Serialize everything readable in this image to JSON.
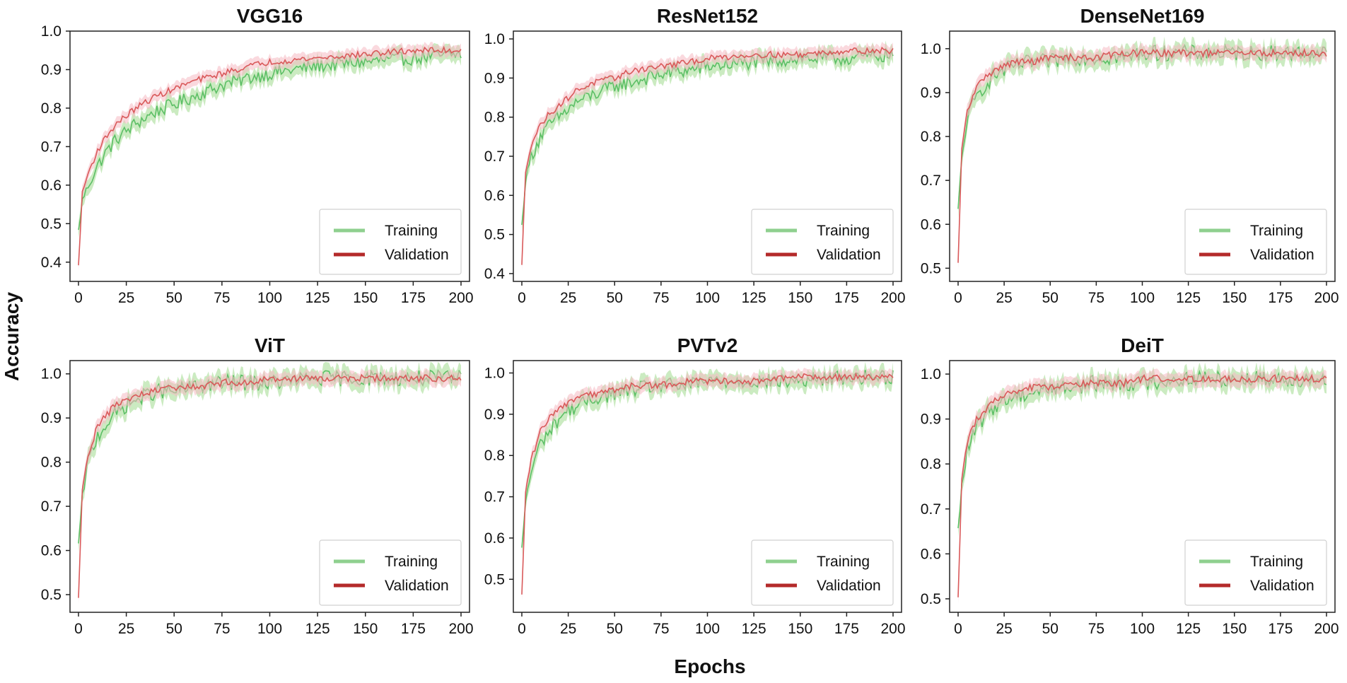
{
  "figure": {
    "ylabel": "Accuracy",
    "xlabel": "Epochs"
  },
  "colors": {
    "training_line": "#5cbf65",
    "training_band": "#a9dd98",
    "validation_line": "#d9595a",
    "validation_band": "#f6b9c2",
    "legend_training": "#8fd08f",
    "legend_validation": "#b42a2a",
    "axis": "#222222"
  },
  "legend": {
    "training_label": "Training",
    "validation_label": "Validation",
    "placement": "lower-right"
  },
  "chart_data": [
    {
      "type": "line",
      "title": "VGG16",
      "x_range": [
        0,
        200
      ],
      "x_ticks": [
        0,
        25,
        50,
        75,
        100,
        125,
        150,
        175,
        200
      ],
      "ylim": [
        0.35,
        1.0
      ],
      "y_ticks": [
        0.4,
        0.5,
        0.6,
        0.7,
        0.8,
        0.9,
        1.0
      ],
      "y_tick_labels": [
        "0.4",
        "0.5",
        "0.6",
        "0.7",
        "0.8",
        "0.9",
        "1.0"
      ],
      "series": [
        {
          "name": "Training",
          "x": [
            0,
            2,
            5,
            10,
            15,
            20,
            25,
            30,
            40,
            50,
            60,
            75,
            90,
            100,
            125,
            150,
            175,
            200
          ],
          "values": [
            0.48,
            0.56,
            0.6,
            0.65,
            0.69,
            0.72,
            0.74,
            0.76,
            0.79,
            0.81,
            0.83,
            0.86,
            0.88,
            0.89,
            0.91,
            0.92,
            0.93,
            0.94
          ],
          "band": 0.02
        },
        {
          "name": "Validation",
          "x": [
            0,
            2,
            5,
            10,
            15,
            20,
            25,
            30,
            40,
            50,
            60,
            75,
            90,
            100,
            125,
            150,
            175,
            200
          ],
          "values": [
            0.39,
            0.58,
            0.63,
            0.69,
            0.73,
            0.76,
            0.78,
            0.8,
            0.83,
            0.85,
            0.87,
            0.89,
            0.91,
            0.92,
            0.93,
            0.94,
            0.95,
            0.95
          ],
          "band": 0.015
        }
      ]
    },
    {
      "type": "line",
      "title": "ResNet152",
      "x_range": [
        0,
        200
      ],
      "x_ticks": [
        0,
        25,
        50,
        75,
        100,
        125,
        150,
        175,
        200
      ],
      "ylim": [
        0.38,
        1.02
      ],
      "y_ticks": [
        0.4,
        0.5,
        0.6,
        0.7,
        0.8,
        0.9,
        1.0
      ],
      "y_tick_labels": [
        "0.4",
        "0.5",
        "0.6",
        "0.7",
        "0.8",
        "0.9",
        "1.0"
      ],
      "series": [
        {
          "name": "Training",
          "x": [
            0,
            2,
            5,
            10,
            15,
            20,
            25,
            30,
            40,
            50,
            60,
            75,
            90,
            100,
            125,
            150,
            175,
            200
          ],
          "values": [
            0.52,
            0.64,
            0.7,
            0.75,
            0.78,
            0.8,
            0.82,
            0.84,
            0.86,
            0.88,
            0.89,
            0.91,
            0.92,
            0.93,
            0.94,
            0.95,
            0.95,
            0.96
          ],
          "band": 0.02
        },
        {
          "name": "Validation",
          "x": [
            0,
            2,
            5,
            10,
            15,
            20,
            25,
            30,
            40,
            50,
            60,
            75,
            90,
            100,
            125,
            150,
            175,
            200
          ],
          "values": [
            0.42,
            0.66,
            0.73,
            0.78,
            0.81,
            0.83,
            0.85,
            0.87,
            0.89,
            0.9,
            0.92,
            0.93,
            0.94,
            0.95,
            0.96,
            0.96,
            0.97,
            0.97
          ],
          "band": 0.015
        }
      ]
    },
    {
      "type": "line",
      "title": "DenseNet169",
      "x_range": [
        0,
        200
      ],
      "x_ticks": [
        0,
        25,
        50,
        75,
        100,
        125,
        150,
        175,
        200
      ],
      "ylim": [
        0.47,
        1.04
      ],
      "y_ticks": [
        0.5,
        0.6,
        0.7,
        0.8,
        0.9,
        1.0
      ],
      "y_tick_labels": [
        "0.5",
        "0.6",
        "0.7",
        "0.8",
        "0.9",
        "1.0"
      ],
      "series": [
        {
          "name": "Training",
          "x": [
            0,
            2,
            5,
            10,
            15,
            20,
            25,
            30,
            40,
            50,
            60,
            75,
            90,
            100,
            125,
            150,
            175,
            200
          ],
          "values": [
            0.63,
            0.75,
            0.84,
            0.89,
            0.92,
            0.94,
            0.95,
            0.96,
            0.97,
            0.97,
            0.98,
            0.98,
            0.98,
            0.99,
            0.99,
            0.99,
            0.99,
            0.99
          ],
          "band": 0.02
        },
        {
          "name": "Validation",
          "x": [
            0,
            2,
            5,
            10,
            15,
            20,
            25,
            30,
            40,
            50,
            60,
            75,
            90,
            100,
            125,
            150,
            175,
            200
          ],
          "values": [
            0.51,
            0.77,
            0.86,
            0.91,
            0.94,
            0.95,
            0.96,
            0.97,
            0.97,
            0.98,
            0.98,
            0.98,
            0.99,
            0.99,
            0.99,
            0.99,
            0.99,
            0.99
          ],
          "band": 0.015
        }
      ]
    },
    {
      "type": "line",
      "title": "ViT",
      "x_range": [
        0,
        200
      ],
      "x_ticks": [
        0,
        25,
        50,
        75,
        100,
        125,
        150,
        175,
        200
      ],
      "ylim": [
        0.46,
        1.03
      ],
      "y_ticks": [
        0.5,
        0.6,
        0.7,
        0.8,
        0.9,
        1.0
      ],
      "y_tick_labels": [
        "0.5",
        "0.6",
        "0.7",
        "0.8",
        "0.9",
        "1.0"
      ],
      "series": [
        {
          "name": "Training",
          "x": [
            0,
            2,
            5,
            10,
            15,
            20,
            25,
            30,
            40,
            50,
            60,
            75,
            90,
            100,
            125,
            150,
            175,
            200
          ],
          "values": [
            0.61,
            0.72,
            0.8,
            0.86,
            0.89,
            0.91,
            0.93,
            0.94,
            0.96,
            0.96,
            0.97,
            0.98,
            0.98,
            0.98,
            0.99,
            0.99,
            0.99,
            0.99
          ],
          "band": 0.02
        },
        {
          "name": "Validation",
          "x": [
            0,
            2,
            5,
            10,
            15,
            20,
            25,
            30,
            40,
            50,
            60,
            75,
            90,
            100,
            125,
            150,
            175,
            200
          ],
          "values": [
            0.49,
            0.74,
            0.82,
            0.88,
            0.91,
            0.93,
            0.94,
            0.95,
            0.96,
            0.97,
            0.97,
            0.98,
            0.98,
            0.99,
            0.99,
            0.99,
            0.99,
            0.99
          ],
          "band": 0.015
        }
      ]
    },
    {
      "type": "line",
      "title": "PVTv2",
      "x_range": [
        0,
        200
      ],
      "x_ticks": [
        0,
        25,
        50,
        75,
        100,
        125,
        150,
        175,
        200
      ],
      "ylim": [
        0.42,
        1.03
      ],
      "y_ticks": [
        0.5,
        0.6,
        0.7,
        0.8,
        0.9,
        1.0
      ],
      "y_tick_labels": [
        "0.5",
        "0.6",
        "0.7",
        "0.8",
        "0.9",
        "1.0"
      ],
      "series": [
        {
          "name": "Training",
          "x": [
            0,
            2,
            5,
            10,
            15,
            20,
            25,
            30,
            40,
            50,
            60,
            75,
            90,
            100,
            125,
            150,
            175,
            200
          ],
          "values": [
            0.57,
            0.69,
            0.76,
            0.83,
            0.86,
            0.89,
            0.91,
            0.92,
            0.94,
            0.95,
            0.96,
            0.97,
            0.97,
            0.98,
            0.98,
            0.98,
            0.99,
            0.99
          ],
          "band": 0.02
        },
        {
          "name": "Validation",
          "x": [
            0,
            2,
            5,
            10,
            15,
            20,
            25,
            30,
            40,
            50,
            60,
            75,
            90,
            100,
            125,
            150,
            175,
            200
          ],
          "values": [
            0.46,
            0.71,
            0.79,
            0.86,
            0.89,
            0.91,
            0.93,
            0.94,
            0.95,
            0.96,
            0.97,
            0.97,
            0.98,
            0.98,
            0.98,
            0.99,
            0.99,
            0.99
          ],
          "band": 0.015
        }
      ]
    },
    {
      "type": "line",
      "title": "DeiT",
      "x_range": [
        0,
        200
      ],
      "x_ticks": [
        0,
        25,
        50,
        75,
        100,
        125,
        150,
        175,
        200
      ],
      "ylim": [
        0.47,
        1.03
      ],
      "y_ticks": [
        0.5,
        0.6,
        0.7,
        0.8,
        0.9,
        1.0
      ],
      "y_tick_labels": [
        "0.5",
        "0.6",
        "0.7",
        "0.8",
        "0.9",
        "1.0"
      ],
      "series": [
        {
          "name": "Training",
          "x": [
            0,
            2,
            5,
            10,
            15,
            20,
            25,
            30,
            40,
            50,
            60,
            75,
            90,
            100,
            125,
            150,
            175,
            200
          ],
          "values": [
            0.65,
            0.75,
            0.83,
            0.88,
            0.91,
            0.93,
            0.94,
            0.95,
            0.96,
            0.97,
            0.97,
            0.98,
            0.98,
            0.98,
            0.99,
            0.99,
            0.99,
            0.99
          ],
          "band": 0.02
        },
        {
          "name": "Validation",
          "x": [
            0,
            2,
            5,
            10,
            15,
            20,
            25,
            30,
            40,
            50,
            60,
            75,
            90,
            100,
            125,
            150,
            175,
            200
          ],
          "values": [
            0.5,
            0.77,
            0.85,
            0.9,
            0.92,
            0.94,
            0.95,
            0.96,
            0.97,
            0.97,
            0.98,
            0.98,
            0.98,
            0.99,
            0.99,
            0.99,
            0.99,
            0.99
          ],
          "band": 0.015
        }
      ]
    }
  ]
}
